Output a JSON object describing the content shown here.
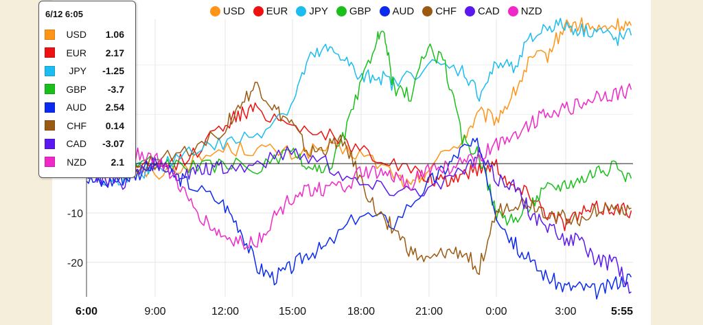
{
  "chart_data": {
    "type": "line",
    "x_ticks": [
      "6:00",
      "9:00",
      "12:00",
      "15:00",
      "18:00",
      "21:00",
      "0:00",
      "3:00",
      "5:55"
    ],
    "y_ticks": [
      -10,
      -20
    ],
    "ylim": [
      -27,
      29
    ],
    "legend_position": "top",
    "grid": true,
    "tooltip": {
      "title": "6/12 6:05",
      "rows": [
        {
          "name": "USD",
          "value": "1.06",
          "color": "#ff9417"
        },
        {
          "name": "EUR",
          "value": "2.17",
          "color": "#ee1111"
        },
        {
          "name": "JPY",
          "value": "-1.25",
          "color": "#1bbcf0"
        },
        {
          "name": "GBP",
          "value": "-3.7",
          "color": "#1bbf1b"
        },
        {
          "name": "AUD",
          "value": "2.54",
          "color": "#0b2af0"
        },
        {
          "name": "CHF",
          "value": "0.14",
          "color": "#9b5a12"
        },
        {
          "name": "CAD",
          "value": "-3.07",
          "color": "#5b18ee"
        },
        {
          "name": "NZD",
          "value": "2.1",
          "color": "#f028c8"
        }
      ]
    },
    "series": [
      {
        "name": "USD",
        "color": "#ff9417",
        "points": [
          [
            0,
            0
          ],
          [
            2,
            -1
          ],
          [
            4,
            -2
          ],
          [
            6,
            0
          ],
          [
            8,
            3
          ],
          [
            10,
            3
          ],
          [
            12,
            2
          ],
          [
            14,
            3
          ],
          [
            16,
            2
          ],
          [
            18,
            -2
          ],
          [
            19,
            -5
          ],
          [
            20,
            -1
          ],
          [
            22,
            5
          ],
          [
            23,
            10
          ],
          [
            24,
            9
          ],
          [
            25,
            14
          ],
          [
            26,
            21
          ],
          [
            27,
            22
          ],
          [
            28,
            28
          ],
          [
            29,
            28
          ],
          [
            30,
            27
          ],
          [
            31,
            28
          ],
          [
            31.9,
            28
          ]
        ]
      },
      {
        "name": "EUR",
        "color": "#ee1111",
        "points": [
          [
            0,
            0
          ],
          [
            2,
            -1
          ],
          [
            4,
            -1
          ],
          [
            6,
            1
          ],
          [
            8,
            8
          ],
          [
            9,
            10
          ],
          [
            10,
            11
          ],
          [
            12,
            8
          ],
          [
            14,
            6
          ],
          [
            16,
            3
          ],
          [
            18,
            0
          ],
          [
            20,
            -3
          ],
          [
            21,
            -4
          ],
          [
            22,
            -2
          ],
          [
            23,
            -1
          ],
          [
            24,
            0
          ],
          [
            25,
            -5
          ],
          [
            26,
            -6
          ],
          [
            27,
            -10
          ],
          [
            28,
            -12
          ],
          [
            29,
            -10
          ],
          [
            30,
            -9
          ],
          [
            31,
            -9
          ],
          [
            31.9,
            -9.5
          ]
        ]
      },
      {
        "name": "JPY",
        "color": "#1bbcf0",
        "points": [
          [
            0,
            0
          ],
          [
            1,
            -4
          ],
          [
            2,
            -3
          ],
          [
            3,
            -1
          ],
          [
            4,
            -2
          ],
          [
            6,
            3
          ],
          [
            8,
            4
          ],
          [
            10,
            6
          ],
          [
            12,
            12
          ],
          [
            13,
            21
          ],
          [
            14,
            23
          ],
          [
            15,
            22
          ],
          [
            16,
            17
          ],
          [
            17,
            18
          ],
          [
            18,
            16
          ],
          [
            20,
            20
          ],
          [
            22,
            19
          ],
          [
            23,
            14
          ],
          [
            24,
            20
          ],
          [
            25,
            20
          ],
          [
            26,
            25
          ],
          [
            27,
            28
          ],
          [
            28,
            28
          ],
          [
            29,
            27
          ],
          [
            30,
            27
          ],
          [
            31,
            25
          ],
          [
            31.9,
            26
          ]
        ]
      },
      {
        "name": "GBP",
        "color": "#1bbf1b",
        "points": [
          [
            0,
            0
          ],
          [
            2,
            -1
          ],
          [
            4,
            1
          ],
          [
            6,
            -1
          ],
          [
            8,
            0
          ],
          [
            10,
            -1
          ],
          [
            12,
            2
          ],
          [
            13,
            -1
          ],
          [
            14,
            -2
          ],
          [
            15,
            5
          ],
          [
            16,
            15
          ],
          [
            17,
            26
          ],
          [
            17.5,
            25
          ],
          [
            18,
            15
          ],
          [
            19,
            14
          ],
          [
            20,
            24
          ],
          [
            21,
            20
          ],
          [
            22,
            5
          ],
          [
            23,
            2
          ],
          [
            24,
            -10
          ],
          [
            25,
            -12
          ],
          [
            26,
            -8
          ],
          [
            27,
            -5
          ],
          [
            28,
            -4
          ],
          [
            29,
            -3
          ],
          [
            30,
            -1
          ],
          [
            31,
            -1
          ],
          [
            31.9,
            -3
          ]
        ]
      },
      {
        "name": "AUD",
        "color": "#0b2af0",
        "points": [
          [
            0,
            -3
          ],
          [
            1,
            -4
          ],
          [
            2,
            -3
          ],
          [
            3,
            -2
          ],
          [
            4,
            0
          ],
          [
            5,
            -2
          ],
          [
            6,
            -4
          ],
          [
            8,
            -8
          ],
          [
            9,
            -13
          ],
          [
            10,
            -21
          ],
          [
            11,
            -23
          ],
          [
            12,
            -21
          ],
          [
            13,
            -18
          ],
          [
            14,
            -17
          ],
          [
            16,
            -10
          ],
          [
            18,
            -12
          ],
          [
            20,
            -4
          ],
          [
            21,
            -1
          ],
          [
            22,
            3
          ],
          [
            23,
            4
          ],
          [
            24,
            -10
          ],
          [
            25,
            -16
          ],
          [
            26,
            -20
          ],
          [
            27,
            -23
          ],
          [
            28,
            -25
          ],
          [
            29,
            -25
          ],
          [
            30,
            -26
          ],
          [
            31,
            -24
          ],
          [
            31.9,
            -23
          ]
        ]
      },
      {
        "name": "CHF",
        "color": "#9b5a12",
        "points": [
          [
            0,
            0
          ],
          [
            2,
            -1
          ],
          [
            4,
            0
          ],
          [
            6,
            3
          ],
          [
            8,
            7
          ],
          [
            9,
            12
          ],
          [
            10,
            16
          ],
          [
            11,
            11
          ],
          [
            12,
            8
          ],
          [
            13,
            2
          ],
          [
            14,
            3
          ],
          [
            15,
            5
          ],
          [
            16,
            -3
          ],
          [
            17,
            -10
          ],
          [
            18,
            -13
          ],
          [
            19,
            -18
          ],
          [
            20,
            -20
          ],
          [
            21,
            -18
          ],
          [
            22,
            -18
          ],
          [
            23,
            -21
          ],
          [
            24,
            -10
          ],
          [
            25,
            -8
          ],
          [
            26,
            -8
          ],
          [
            27,
            -10
          ],
          [
            28,
            -11
          ],
          [
            29,
            -11
          ],
          [
            30,
            -9
          ],
          [
            31,
            -9
          ],
          [
            31.9,
            -9
          ]
        ]
      },
      {
        "name": "CAD",
        "color": "#5b18ee",
        "points": [
          [
            0,
            -2
          ],
          [
            1,
            -3
          ],
          [
            2,
            -4
          ],
          [
            3,
            -1
          ],
          [
            4,
            0
          ],
          [
            5,
            -2
          ],
          [
            6,
            -2
          ],
          [
            7,
            -1
          ],
          [
            8,
            -1
          ],
          [
            10,
            0
          ],
          [
            12,
            3
          ],
          [
            14,
            0
          ],
          [
            16,
            -4
          ],
          [
            18,
            -5
          ],
          [
            20,
            -5
          ],
          [
            22,
            -2
          ],
          [
            23,
            2
          ],
          [
            24,
            -3
          ],
          [
            25,
            -4
          ],
          [
            26,
            -10
          ],
          [
            27,
            -13
          ],
          [
            28,
            -15
          ],
          [
            29,
            -16
          ],
          [
            30,
            -20
          ],
          [
            31,
            -20
          ],
          [
            31.9,
            -26
          ]
        ]
      },
      {
        "name": "NZD",
        "color": "#f028c8",
        "points": [
          [
            0,
            0
          ],
          [
            1,
            1
          ],
          [
            2,
            4
          ],
          [
            3,
            2
          ],
          [
            4,
            1
          ],
          [
            5,
            -2
          ],
          [
            6,
            -8
          ],
          [
            7,
            -12
          ],
          [
            8,
            -15
          ],
          [
            9,
            -16
          ],
          [
            10,
            -16
          ],
          [
            11,
            -11
          ],
          [
            12,
            -7
          ],
          [
            13,
            -5
          ],
          [
            14,
            -5
          ],
          [
            15,
            -5
          ],
          [
            16,
            -2
          ],
          [
            17,
            -2
          ],
          [
            18,
            -3
          ],
          [
            19,
            -4
          ],
          [
            20,
            -1
          ],
          [
            21,
            -1
          ],
          [
            22,
            0
          ],
          [
            23,
            1
          ],
          [
            24,
            4
          ],
          [
            25,
            6
          ],
          [
            26,
            8
          ],
          [
            27,
            11
          ],
          [
            28,
            11
          ],
          [
            29,
            12
          ],
          [
            30,
            14
          ],
          [
            31,
            14
          ],
          [
            31.9,
            15
          ]
        ]
      }
    ]
  }
}
